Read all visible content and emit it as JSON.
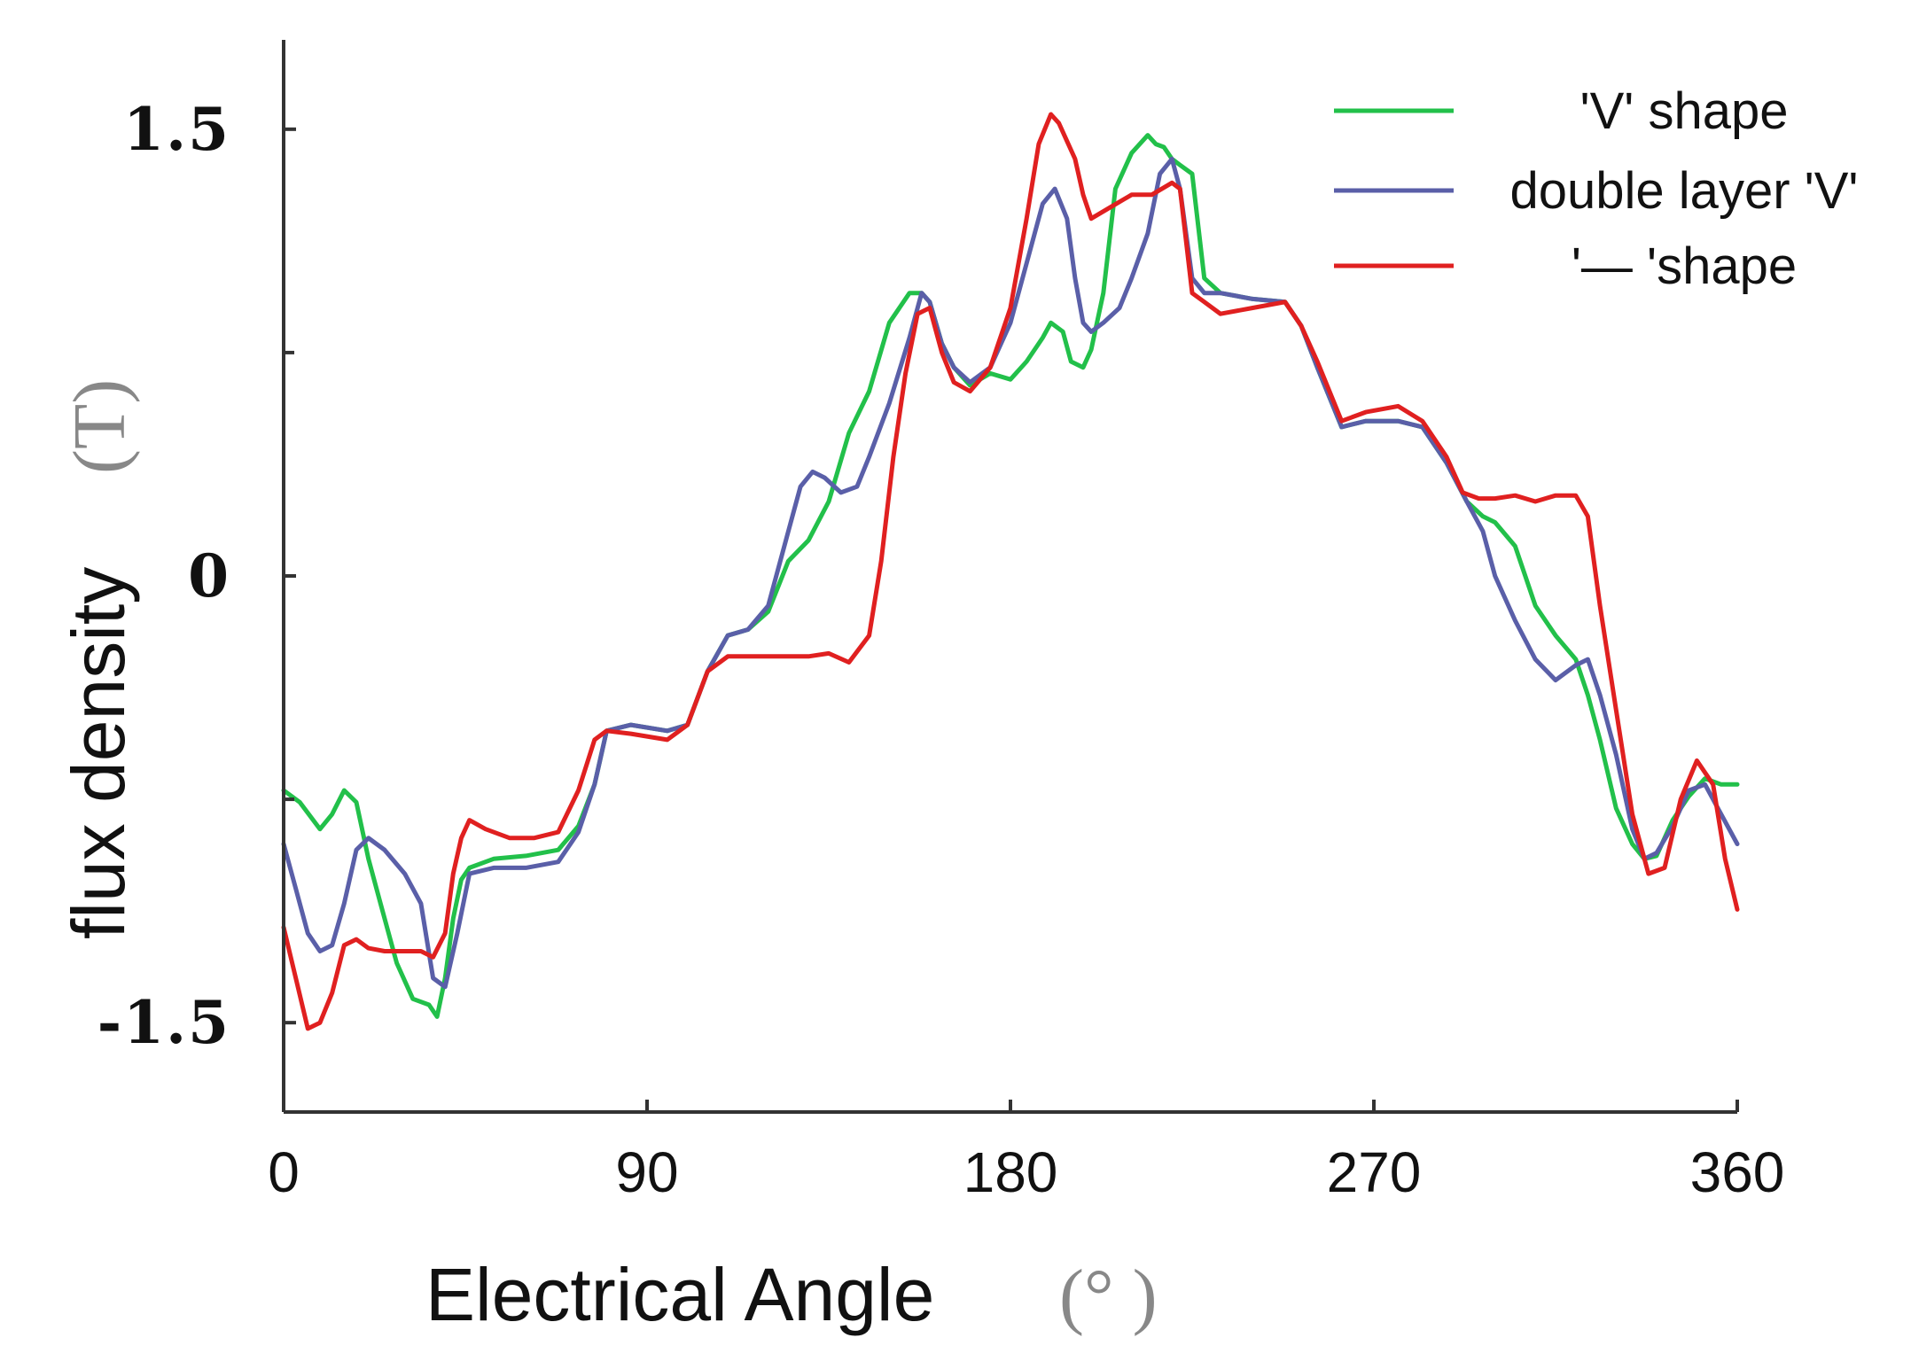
{
  "chart_data": {
    "type": "line",
    "xlabel": "Electrical Angle",
    "xlabel_unit": "(°  )",
    "ylabel": "flux density",
    "ylabel_unit": "(T)",
    "xlim": [
      0,
      360
    ],
    "ylim": [
      -1.8,
      1.8
    ],
    "x_ticks": [
      0,
      90,
      180,
      270,
      360
    ],
    "x_tick_labels": [
      "0",
      "90",
      "180",
      "270",
      "360"
    ],
    "y_ticks": [
      -1.5,
      0,
      1.5
    ],
    "y_tick_labels": [
      "-1.5",
      "0",
      "1.5"
    ],
    "y_minor_ticks": [
      -0.75,
      0.75
    ],
    "grid": false,
    "legend_position": "top-right",
    "series": [
      {
        "name": "'V' shape",
        "color": "#22c04a",
        "x": [
          0,
          4,
          9,
          12,
          15,
          18,
          21,
          24,
          28,
          32,
          36,
          38,
          40,
          42,
          44,
          46,
          52,
          60,
          68,
          73,
          77,
          80,
          86,
          95,
          100,
          105,
          110,
          115,
          120,
          125,
          130,
          135,
          140,
          145,
          150,
          155,
          158,
          160,
          163,
          166,
          170,
          175,
          180,
          184,
          188,
          190,
          193,
          195,
          198,
          200,
          203,
          206,
          210,
          214,
          216,
          218,
          220,
          222,
          225,
          228,
          232,
          240,
          248,
          252,
          256,
          262,
          268,
          276,
          282,
          288,
          293,
          297,
          300,
          305,
          310,
          315,
          320,
          323,
          326,
          330,
          334,
          337,
          340,
          344,
          348,
          352,
          356,
          360
        ],
        "values": [
          -0.72,
          -0.76,
          -0.85,
          -0.8,
          -0.72,
          -0.76,
          -0.95,
          -1.1,
          -1.3,
          -1.42,
          -1.44,
          -1.48,
          -1.35,
          -1.15,
          -1.02,
          -0.98,
          -0.95,
          -0.94,
          -0.92,
          -0.84,
          -0.7,
          -0.52,
          -0.5,
          -0.52,
          -0.5,
          -0.32,
          -0.2,
          -0.18,
          -0.12,
          0.05,
          0.12,
          0.25,
          0.48,
          0.62,
          0.85,
          0.95,
          0.95,
          0.92,
          0.78,
          0.7,
          0.64,
          0.68,
          0.66,
          0.72,
          0.8,
          0.85,
          0.82,
          0.72,
          0.7,
          0.76,
          0.95,
          1.3,
          1.42,
          1.48,
          1.45,
          1.44,
          1.4,
          1.38,
          1.35,
          1.0,
          0.95,
          0.93,
          0.92,
          0.84,
          0.7,
          0.5,
          0.52,
          0.52,
          0.5,
          0.38,
          0.25,
          0.2,
          0.18,
          0.1,
          -0.1,
          -0.2,
          -0.28,
          -0.4,
          -0.55,
          -0.78,
          -0.9,
          -0.95,
          -0.94,
          -0.82,
          -0.74,
          -0.68,
          -0.7,
          -0.7
        ]
      },
      {
        "name": "double layer 'V'",
        "color": "#5a5fa8",
        "x": [
          0,
          3,
          6,
          9,
          12,
          15,
          18,
          21,
          25,
          30,
          34,
          37,
          40,
          43,
          46,
          52,
          60,
          68,
          73,
          77,
          80,
          86,
          95,
          100,
          105,
          110,
          115,
          120,
          125,
          128,
          131,
          134,
          138,
          142,
          145,
          150,
          155,
          158,
          160,
          163,
          166,
          170,
          175,
          180,
          184,
          188,
          191,
          194,
          196,
          198,
          200,
          203,
          207,
          210,
          214,
          217,
          220,
          222,
          225,
          228,
          232,
          240,
          248,
          252,
          256,
          262,
          268,
          276,
          282,
          288,
          293,
          297,
          300,
          305,
          310,
          315,
          320,
          323,
          326,
          330,
          334,
          337,
          340,
          344,
          348,
          352,
          356,
          360
        ],
        "values": [
          -0.9,
          -1.05,
          -1.2,
          -1.26,
          -1.24,
          -1.1,
          -0.92,
          -0.88,
          -0.92,
          -1.0,
          -1.1,
          -1.35,
          -1.38,
          -1.2,
          -1.0,
          -0.98,
          -0.98,
          -0.96,
          -0.86,
          -0.7,
          -0.52,
          -0.5,
          -0.52,
          -0.5,
          -0.32,
          -0.2,
          -0.18,
          -0.1,
          0.15,
          0.3,
          0.35,
          0.33,
          0.28,
          0.3,
          0.4,
          0.58,
          0.8,
          0.95,
          0.92,
          0.78,
          0.7,
          0.65,
          0.7,
          0.85,
          1.05,
          1.25,
          1.3,
          1.2,
          1.0,
          0.85,
          0.82,
          0.85,
          0.9,
          1.0,
          1.15,
          1.35,
          1.4,
          1.3,
          1.0,
          0.95,
          0.95,
          0.93,
          0.92,
          0.84,
          0.7,
          0.5,
          0.52,
          0.52,
          0.5,
          0.38,
          0.25,
          0.15,
          0.0,
          -0.15,
          -0.28,
          -0.35,
          -0.3,
          -0.28,
          -0.4,
          -0.6,
          -0.85,
          -0.95,
          -0.93,
          -0.84,
          -0.72,
          -0.7,
          -0.8,
          -0.9
        ]
      },
      {
        "name": "'— 'shape",
        "color": "#e02020",
        "x": [
          0,
          3,
          6,
          9,
          12,
          15,
          18,
          21,
          25,
          30,
          34,
          37,
          40,
          42,
          44,
          46,
          50,
          56,
          62,
          68,
          73,
          77,
          80,
          86,
          95,
          100,
          105,
          110,
          115,
          120,
          125,
          130,
          135,
          140,
          145,
          148,
          151,
          154,
          157,
          160,
          163,
          166,
          170,
          175,
          180,
          184,
          187,
          190,
          192,
          194,
          196,
          198,
          200,
          205,
          210,
          215,
          220,
          222,
          225,
          228,
          232,
          240,
          248,
          252,
          256,
          262,
          268,
          276,
          282,
          288,
          292,
          296,
          300,
          305,
          310,
          315,
          320,
          323,
          326,
          330,
          334,
          338,
          342,
          346,
          350,
          354,
          357,
          360
        ],
        "values": [
          -1.18,
          -1.35,
          -1.52,
          -1.5,
          -1.4,
          -1.24,
          -1.22,
          -1.25,
          -1.26,
          -1.26,
          -1.26,
          -1.28,
          -1.2,
          -1.0,
          -0.88,
          -0.82,
          -0.85,
          -0.88,
          -0.88,
          -0.86,
          -0.72,
          -0.55,
          -0.52,
          -0.53,
          -0.55,
          -0.5,
          -0.32,
          -0.27,
          -0.27,
          -0.27,
          -0.27,
          -0.27,
          -0.26,
          -0.29,
          -0.2,
          0.05,
          0.4,
          0.68,
          0.88,
          0.9,
          0.75,
          0.65,
          0.62,
          0.7,
          0.9,
          1.2,
          1.45,
          1.55,
          1.52,
          1.46,
          1.4,
          1.28,
          1.2,
          1.24,
          1.28,
          1.28,
          1.32,
          1.3,
          0.95,
          0.92,
          0.88,
          0.9,
          0.92,
          0.84,
          0.72,
          0.52,
          0.55,
          0.57,
          0.52,
          0.4,
          0.28,
          0.26,
          0.26,
          0.27,
          0.25,
          0.27,
          0.27,
          0.2,
          -0.1,
          -0.45,
          -0.8,
          -1.0,
          -0.98,
          -0.75,
          -0.62,
          -0.7,
          -0.95,
          -1.12
        ]
      }
    ]
  }
}
